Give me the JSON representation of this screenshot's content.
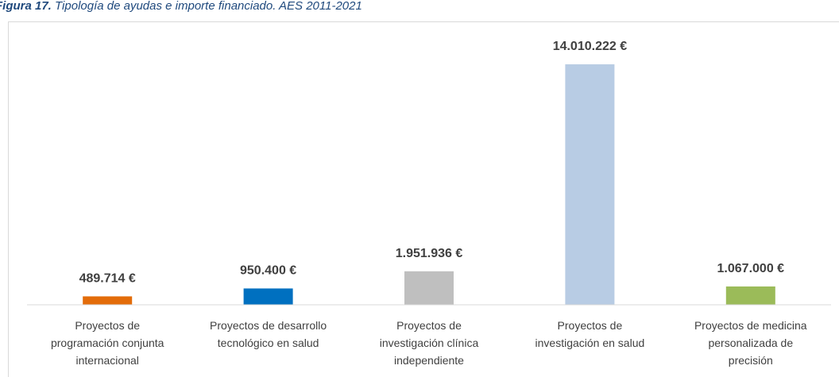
{
  "chart_data": {
    "type": "bar",
    "title_label": "Figura 17.",
    "title": "Tipología de ayudas e importe financiado. AES 2011-2021",
    "categories": [
      "Proyectos de\nprogramación conjunta\ninternacional",
      "Proyectos de desarrollo\ntecnológico en salud",
      "Proyectos de\ninvestigación clínica\nindependiente",
      "Proyectos de\ninvestigación en salud",
      "Proyectos de medicina\npersonalizada de\nprecisión"
    ],
    "values": [
      489714,
      950400,
      1951936,
      14010222,
      1067000
    ],
    "value_labels": [
      "489.714 €",
      "950.400 €",
      "1.951.936 €",
      "14.010.222 €",
      "1.067.000 €"
    ],
    "colors": [
      "#e36c0a",
      "#0070c0",
      "#bfbfbf",
      "#b8cce4",
      "#9bbb59"
    ],
    "ylim": [
      0,
      16000000
    ]
  }
}
